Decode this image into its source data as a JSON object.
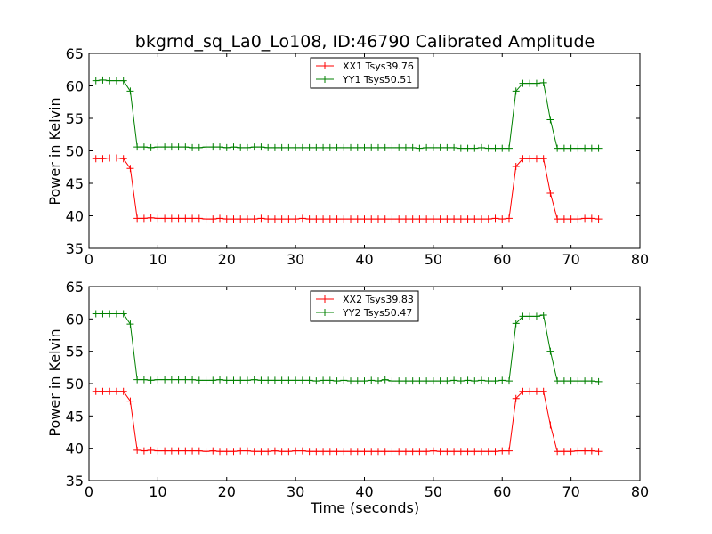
{
  "chart_data": [
    {
      "type": "line",
      "title": "bkgrnd_sq_La0_Lo108, ID:46790 Calibrated Amplitude",
      "xlabel": "",
      "ylabel": "Power in Kelvin",
      "xlim": [
        0,
        80
      ],
      "ylim": [
        35,
        65
      ],
      "xticks": [
        "0",
        "10",
        "20",
        "30",
        "40",
        "50",
        "60",
        "70",
        "80"
      ],
      "yticks": [
        "35",
        "40",
        "45",
        "50",
        "55",
        "60",
        "65"
      ],
      "grid": false,
      "legend_position": "top-center",
      "x": [
        1,
        2,
        3,
        4,
        5,
        6,
        7,
        8,
        9,
        10,
        11,
        12,
        13,
        14,
        15,
        16,
        17,
        18,
        19,
        20,
        21,
        22,
        23,
        24,
        25,
        26,
        27,
        28,
        29,
        30,
        31,
        32,
        33,
        34,
        35,
        36,
        37,
        38,
        39,
        40,
        41,
        42,
        43,
        44,
        45,
        46,
        47,
        48,
        49,
        50,
        51,
        52,
        53,
        54,
        55,
        56,
        57,
        58,
        59,
        60,
        61,
        62,
        63,
        64,
        65,
        66,
        67,
        68,
        69,
        70,
        71,
        72,
        73,
        74
      ],
      "series": [
        {
          "name": "XX1 Tsys39.76",
          "color": "#ff0000",
          "values": [
            48.8,
            48.8,
            48.9,
            48.9,
            48.8,
            47.3,
            39.6,
            39.6,
            39.7,
            39.6,
            39.6,
            39.6,
            39.6,
            39.6,
            39.6,
            39.6,
            39.5,
            39.5,
            39.6,
            39.5,
            39.5,
            39.5,
            39.5,
            39.5,
            39.6,
            39.5,
            39.5,
            39.5,
            39.5,
            39.5,
            39.6,
            39.5,
            39.5,
            39.5,
            39.5,
            39.5,
            39.5,
            39.5,
            39.5,
            39.5,
            39.5,
            39.5,
            39.5,
            39.5,
            39.5,
            39.5,
            39.5,
            39.5,
            39.5,
            39.5,
            39.5,
            39.5,
            39.5,
            39.5,
            39.5,
            39.5,
            39.5,
            39.5,
            39.6,
            39.5,
            39.6,
            47.6,
            48.8,
            48.8,
            48.8,
            48.8,
            43.5,
            39.5,
            39.5,
            39.5,
            39.5,
            39.6,
            39.6,
            39.5
          ]
        },
        {
          "name": "YY1 Tsys50.51",
          "color": "#008000",
          "values": [
            60.8,
            60.9,
            60.8,
            60.8,
            60.8,
            59.2,
            50.6,
            50.6,
            50.5,
            50.6,
            50.6,
            50.6,
            50.6,
            50.6,
            50.5,
            50.5,
            50.6,
            50.6,
            50.6,
            50.5,
            50.6,
            50.5,
            50.5,
            50.6,
            50.6,
            50.5,
            50.5,
            50.5,
            50.5,
            50.5,
            50.5,
            50.5,
            50.5,
            50.5,
            50.5,
            50.5,
            50.5,
            50.5,
            50.5,
            50.5,
            50.5,
            50.5,
            50.5,
            50.5,
            50.5,
            50.5,
            50.5,
            50.4,
            50.5,
            50.5,
            50.5,
            50.5,
            50.5,
            50.4,
            50.4,
            50.4,
            50.5,
            50.4,
            50.4,
            50.4,
            50.4,
            59.2,
            60.4,
            60.4,
            60.4,
            60.5,
            54.8,
            50.4,
            50.4,
            50.4,
            50.4,
            50.4,
            50.4,
            50.4
          ]
        }
      ]
    },
    {
      "type": "line",
      "title": "",
      "xlabel": "Time (seconds)",
      "ylabel": "Power in Kelvin",
      "xlim": [
        0,
        80
      ],
      "ylim": [
        35,
        65
      ],
      "xticks": [
        "0",
        "10",
        "20",
        "30",
        "40",
        "50",
        "60",
        "70",
        "80"
      ],
      "yticks": [
        "35",
        "40",
        "45",
        "50",
        "55",
        "60",
        "65"
      ],
      "grid": false,
      "legend_position": "top-center",
      "x": [
        1,
        2,
        3,
        4,
        5,
        6,
        7,
        8,
        9,
        10,
        11,
        12,
        13,
        14,
        15,
        16,
        17,
        18,
        19,
        20,
        21,
        22,
        23,
        24,
        25,
        26,
        27,
        28,
        29,
        30,
        31,
        32,
        33,
        34,
        35,
        36,
        37,
        38,
        39,
        40,
        41,
        42,
        43,
        44,
        45,
        46,
        47,
        48,
        49,
        50,
        51,
        52,
        53,
        54,
        55,
        56,
        57,
        58,
        59,
        60,
        61,
        62,
        63,
        64,
        65,
        66,
        67,
        68,
        69,
        70,
        71,
        72,
        73,
        74
      ],
      "series": [
        {
          "name": "XX2 Tsys39.83",
          "color": "#ff0000",
          "values": [
            48.8,
            48.8,
            48.8,
            48.8,
            48.8,
            47.3,
            39.7,
            39.6,
            39.7,
            39.6,
            39.6,
            39.6,
            39.6,
            39.6,
            39.6,
            39.6,
            39.5,
            39.6,
            39.5,
            39.5,
            39.5,
            39.6,
            39.6,
            39.5,
            39.5,
            39.5,
            39.6,
            39.5,
            39.5,
            39.6,
            39.6,
            39.5,
            39.5,
            39.5,
            39.5,
            39.5,
            39.5,
            39.5,
            39.5,
            39.5,
            39.5,
            39.5,
            39.5,
            39.5,
            39.5,
            39.5,
            39.5,
            39.5,
            39.5,
            39.6,
            39.5,
            39.5,
            39.5,
            39.5,
            39.5,
            39.5,
            39.5,
            39.5,
            39.5,
            39.6,
            39.6,
            47.7,
            48.8,
            48.8,
            48.8,
            48.8,
            43.6,
            39.5,
            39.5,
            39.5,
            39.6,
            39.6,
            39.6,
            39.5
          ]
        },
        {
          "name": "YY2 Tsys50.47",
          "color": "#008000",
          "values": [
            60.8,
            60.8,
            60.8,
            60.8,
            60.8,
            59.2,
            50.6,
            50.6,
            50.5,
            50.6,
            50.6,
            50.6,
            50.6,
            50.6,
            50.6,
            50.5,
            50.5,
            50.5,
            50.6,
            50.5,
            50.5,
            50.5,
            50.5,
            50.6,
            50.5,
            50.5,
            50.5,
            50.5,
            50.5,
            50.5,
            50.5,
            50.5,
            50.4,
            50.5,
            50.5,
            50.4,
            50.5,
            50.4,
            50.4,
            50.4,
            50.5,
            50.4,
            50.6,
            50.4,
            50.4,
            50.4,
            50.4,
            50.4,
            50.4,
            50.4,
            50.4,
            50.4,
            50.5,
            50.4,
            50.5,
            50.4,
            50.5,
            50.4,
            50.4,
            50.5,
            50.4,
            59.3,
            60.4,
            60.4,
            60.4,
            60.6,
            55.0,
            50.4,
            50.4,
            50.4,
            50.4,
            50.4,
            50.4,
            50.3
          ]
        }
      ]
    }
  ]
}
